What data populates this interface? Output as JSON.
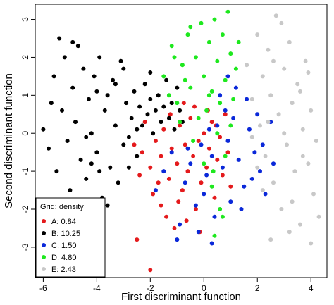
{
  "chart_data": {
    "type": "scatter",
    "title": "",
    "xlabel": "First discriminant function",
    "ylabel": "Second discriminant function",
    "xlim": [
      -6.3,
      4.6
    ],
    "ylim": [
      -3.8,
      3.4
    ],
    "xticks": [
      -6,
      -4,
      -2,
      0,
      2,
      4
    ],
    "yticks": [
      -3,
      -2,
      -1,
      0,
      1,
      2,
      3
    ],
    "grid": false,
    "legend": {
      "title": "Grid: density",
      "placement": "bottom-left"
    },
    "series": [
      {
        "name": "A: 0.84",
        "color": "#e41a1c",
        "points": [
          [
            -2.6,
            -0.3
          ],
          [
            -2.3,
            -0.5
          ],
          [
            -2.0,
            -0.9
          ],
          [
            -1.8,
            -0.2
          ],
          [
            -1.6,
            -0.6
          ],
          [
            -1.5,
            0.1
          ],
          [
            -1.3,
            -1.2
          ],
          [
            -1.2,
            -0.4
          ],
          [
            -1.0,
            -0.8
          ],
          [
            -0.9,
            0.2
          ],
          [
            -0.8,
            -1.5
          ],
          [
            -0.7,
            -0.3
          ],
          [
            -0.6,
            -1.0
          ],
          [
            -0.5,
            0.4
          ],
          [
            -0.4,
            -0.6
          ],
          [
            -0.3,
            -2.0
          ],
          [
            -0.2,
            -0.2
          ],
          [
            -0.1,
            -1.3
          ],
          [
            0.0,
            0.0
          ],
          [
            0.1,
            -0.9
          ],
          [
            0.2,
            -0.4
          ],
          [
            0.3,
            0.3
          ],
          [
            0.4,
            -1.7
          ],
          [
            0.5,
            -0.7
          ],
          [
            0.6,
            -0.1
          ],
          [
            0.7,
            -1.1
          ],
          [
            0.8,
            0.5
          ],
          [
            -2.2,
            0.3
          ],
          [
            -1.9,
            -1.6
          ],
          [
            -1.4,
            -2.2
          ],
          [
            -1.1,
            -2.5
          ],
          [
            -0.95,
            -1.8
          ],
          [
            -0.65,
            -2.3
          ],
          [
            -1.7,
            -1.3
          ],
          [
            -2.4,
            -1.1
          ],
          [
            -0.35,
            0.7
          ],
          [
            0.15,
            0.6
          ],
          [
            0.45,
            0.2
          ],
          [
            -1.25,
            0.5
          ],
          [
            -0.75,
            0.8
          ],
          [
            -2.0,
            -3.6
          ],
          [
            -2.5,
            -2.8
          ],
          [
            -1.6,
            -1.9
          ],
          [
            0.9,
            -0.5
          ],
          [
            1.0,
            -1.4
          ],
          [
            -0.15,
            -2.6
          ]
        ]
      },
      {
        "name": "B: 10.25",
        "color": "#000000",
        "points": [
          [
            -6.0,
            0.1
          ],
          [
            -5.8,
            -0.4
          ],
          [
            -5.6,
            1.5
          ],
          [
            -5.5,
            -1.0
          ],
          [
            -5.3,
            0.6
          ],
          [
            -5.2,
            2.0
          ],
          [
            -5.1,
            -0.2
          ],
          [
            -5.0,
            -1.5
          ],
          [
            -4.9,
            1.2
          ],
          [
            -4.8,
            0.3
          ],
          [
            -4.7,
            2.3
          ],
          [
            -4.6,
            -0.7
          ],
          [
            -4.5,
            1.7
          ],
          [
            -4.4,
            -1.2
          ],
          [
            -4.3,
            0.9
          ],
          [
            -4.2,
            0.0
          ],
          [
            -4.1,
            1.5
          ],
          [
            -4.0,
            -0.5
          ],
          [
            -3.9,
            2.0
          ],
          [
            -3.8,
            -1.7
          ],
          [
            -3.7,
            0.6
          ],
          [
            -3.6,
            1.0
          ],
          [
            -3.5,
            -0.9
          ],
          [
            -3.4,
            1.4
          ],
          [
            -3.3,
            0.2
          ],
          [
            -3.2,
            -1.3
          ],
          [
            -3.1,
            1.9
          ],
          [
            -3.0,
            -0.3
          ],
          [
            -2.9,
            0.8
          ],
          [
            -2.8,
            -0.1
          ],
          [
            -2.7,
            0.4
          ],
          [
            -2.6,
            1.1
          ],
          [
            -2.5,
            -0.6
          ],
          [
            -2.4,
            0.7
          ],
          [
            -2.3,
            0.2
          ],
          [
            -2.2,
            1.3
          ],
          [
            -2.1,
            0.5
          ],
          [
            -2.0,
            0.9
          ],
          [
            -1.9,
            0.0
          ],
          [
            -1.8,
            0.6
          ],
          [
            -1.7,
            1.0
          ],
          [
            -1.6,
            0.3
          ],
          [
            -1.5,
            0.7
          ],
          [
            -1.4,
            1.4
          ],
          [
            -1.3,
            0.4
          ],
          [
            -1.2,
            0.8
          ],
          [
            -1.1,
            0.1
          ],
          [
            -1.0,
            1.2
          ],
          [
            -0.9,
            0.6
          ],
          [
            -0.8,
            0.3
          ],
          [
            -5.4,
            2.5
          ],
          [
            -4.9,
            2.4
          ],
          [
            -4.0,
            1.1
          ],
          [
            -4.4,
            -0.1
          ],
          [
            -3.6,
            -1.9
          ],
          [
            -3.0,
            1.7
          ],
          [
            -2.5,
            0.1
          ],
          [
            -4.8,
            -1.8
          ],
          [
            -5.7,
            0.8
          ],
          [
            -3.9,
            -1.0
          ],
          [
            -2.8,
            -0.9
          ],
          [
            -2.0,
            1.6
          ],
          [
            -3.3,
            1.3
          ],
          [
            -4.2,
            -0.8
          ]
        ]
      },
      {
        "name": "C: 1.50",
        "color": "#0a28d9",
        "points": [
          [
            -1.8,
            -1.5
          ],
          [
            -1.5,
            -1.0
          ],
          [
            -1.2,
            -0.5
          ],
          [
            -0.9,
            -2.4
          ],
          [
            -0.7,
            -1.3
          ],
          [
            -0.5,
            -0.8
          ],
          [
            -0.3,
            -1.9
          ],
          [
            -0.1,
            -0.3
          ],
          [
            0.1,
            -1.1
          ],
          [
            0.3,
            -0.6
          ],
          [
            0.5,
            0.2
          ],
          [
            0.7,
            -0.9
          ],
          [
            0.9,
            -0.2
          ],
          [
            1.1,
            0.4
          ],
          [
            1.3,
            -0.7
          ],
          [
            1.5,
            -1.4
          ],
          [
            1.7,
            0.1
          ],
          [
            1.9,
            -0.5
          ],
          [
            2.1,
            -1.0
          ],
          [
            2.3,
            -1.6
          ],
          [
            2.5,
            0.3
          ],
          [
            0.6,
            1.0
          ],
          [
            0.8,
            0.6
          ],
          [
            1.2,
            1.2
          ],
          [
            1.0,
            -1.8
          ],
          [
            0.4,
            -2.2
          ],
          [
            -0.2,
            -2.6
          ],
          [
            1.6,
            0.9
          ],
          [
            2.0,
            0.5
          ],
          [
            1.4,
            -2.0
          ],
          [
            0.2,
            0.1
          ],
          [
            -0.6,
            -0.4
          ],
          [
            0.0,
            -1.6
          ],
          [
            1.8,
            -1.2
          ],
          [
            2.2,
            -0.3
          ],
          [
            0.9,
            1.5
          ],
          [
            -1.0,
            -2.8
          ],
          [
            0.3,
            -2.9
          ],
          [
            2.6,
            -0.8
          ]
        ]
      },
      {
        "name": "D: 4.80",
        "color": "#1ee81e",
        "points": [
          [
            -1.5,
            1.5
          ],
          [
            -1.2,
            2.3
          ],
          [
            -1.0,
            0.8
          ],
          [
            -0.8,
            1.8
          ],
          [
            -0.6,
            2.6
          ],
          [
            -0.5,
            1.2
          ],
          [
            -0.3,
            2.0
          ],
          [
            -0.1,
            2.9
          ],
          [
            0.0,
            1.5
          ],
          [
            0.1,
            0.6
          ],
          [
            0.2,
            2.4
          ],
          [
            0.3,
            1.1
          ],
          [
            0.4,
            3.0
          ],
          [
            0.5,
            1.9
          ],
          [
            0.6,
            0.8
          ],
          [
            0.7,
            2.6
          ],
          [
            0.8,
            1.4
          ],
          [
            0.9,
            3.2
          ],
          [
            1.0,
            2.1
          ],
          [
            1.1,
            0.9
          ],
          [
            1.2,
            1.7
          ],
          [
            -1.3,
            1.0
          ],
          [
            -0.9,
            0.3
          ],
          [
            -0.4,
            -0.2
          ],
          [
            0.0,
            -0.8
          ],
          [
            0.3,
            -1.4
          ],
          [
            0.6,
            -2.0
          ],
          [
            0.8,
            -0.6
          ],
          [
            0.4,
            -2.7
          ],
          [
            0.7,
            -2.2
          ],
          [
            -0.2,
            0.4
          ],
          [
            0.5,
            0.0
          ],
          [
            -0.7,
            1.4
          ],
          [
            1.3,
            2.4
          ],
          [
            -0.5,
            2.8
          ],
          [
            0.2,
            1.0
          ],
          [
            1.0,
            0.2
          ],
          [
            -1.1,
            2.0
          ],
          [
            0.35,
            -1.0
          ]
        ]
      },
      {
        "name": "E: 2.43",
        "color": "#c8c8c8",
        "points": [
          [
            1.6,
            1.8
          ],
          [
            1.8,
            0.9
          ],
          [
            2.0,
            2.6
          ],
          [
            2.1,
            0.2
          ],
          [
            2.2,
            1.5
          ],
          [
            2.3,
            -0.6
          ],
          [
            2.4,
            2.2
          ],
          [
            2.5,
            1.0
          ],
          [
            2.6,
            -1.3
          ],
          [
            2.7,
            3.1
          ],
          [
            2.8,
            0.5
          ],
          [
            2.9,
            -2.0
          ],
          [
            3.0,
            1.7
          ],
          [
            3.1,
            -0.3
          ],
          [
            3.2,
            2.4
          ],
          [
            3.3,
            0.8
          ],
          [
            3.4,
            -1.0
          ],
          [
            3.5,
            1.3
          ],
          [
            3.6,
            -2.4
          ],
          [
            3.7,
            0.1
          ],
          [
            3.8,
            1.9
          ],
          [
            3.9,
            -0.8
          ],
          [
            4.0,
            0.6
          ],
          [
            4.1,
            -1.6
          ],
          [
            4.2,
            -0.2
          ],
          [
            4.3,
            -2.2
          ],
          [
            2.5,
            -2.8
          ],
          [
            2.9,
            2.9
          ],
          [
            3.3,
            -1.8
          ],
          [
            2.0,
            -0.9
          ],
          [
            2.6,
            1.9
          ],
          [
            3.0,
            0.0
          ],
          [
            3.6,
            1.1
          ],
          [
            2.2,
            -1.5
          ],
          [
            4.0,
            -2.9
          ],
          [
            1.8,
            -0.1
          ],
          [
            3.2,
            -2.6
          ],
          [
            2.4,
            0.3
          ],
          [
            3.7,
            -0.6
          ],
          [
            3.9,
            1.6
          ]
        ]
      }
    ]
  }
}
